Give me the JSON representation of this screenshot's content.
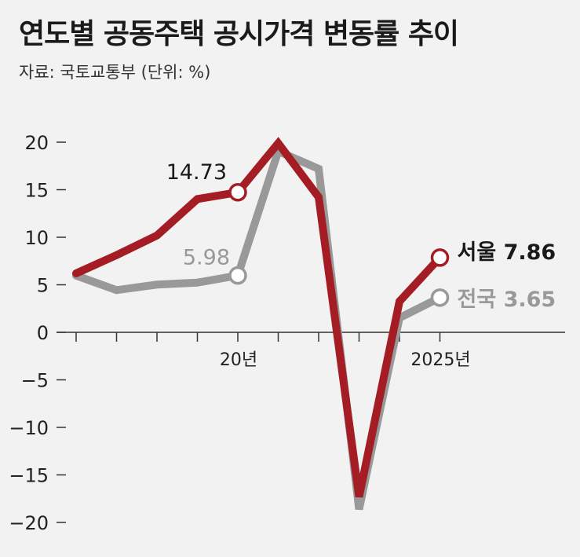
{
  "title": "연도별 공동주택 공시가격 변동률 추이",
  "source": "자료: 국토교통부 (단위: %)",
  "chart_data": {
    "type": "line",
    "title": "연도별 공동주택 공시가격 변동률 추이",
    "unit": "%",
    "x": [
      2016,
      2017,
      2018,
      2019,
      2020,
      2021,
      2022,
      2023,
      2024,
      2025
    ],
    "x_tick_labels": [
      {
        "x": 2020,
        "label": "20년"
      },
      {
        "x": 2025,
        "label": "2025년"
      }
    ],
    "y_ticks": [
      20,
      15,
      10,
      5,
      0,
      -5,
      -10,
      -15,
      -20
    ],
    "y_tick_labels": [
      "20",
      "15",
      "10",
      "5",
      "0",
      "−5",
      "−10",
      "−15",
      "−20"
    ],
    "ylim": [
      -20,
      20
    ],
    "grid": false,
    "series": [
      {
        "name": "전국",
        "color": "#999999",
        "values": [
          5.97,
          4.44,
          5.02,
          5.23,
          5.98,
          19.05,
          17.2,
          -18.61,
          1.52,
          3.65
        ],
        "end_label": "전국 3.65",
        "marked_label": "5.98"
      },
      {
        "name": "서울",
        "color": "#a51d24",
        "values": [
          6.2,
          8.12,
          10.19,
          14.02,
          14.73,
          19.89,
          14.22,
          -17.3,
          3.25,
          7.86
        ],
        "end_label": "서울 7.86",
        "marked_label": "14.73"
      }
    ]
  }
}
